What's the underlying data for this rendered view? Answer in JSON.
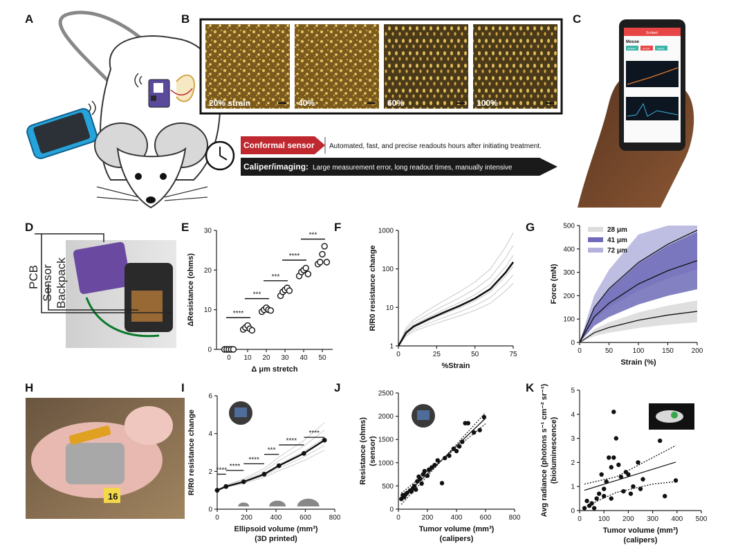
{
  "panels": [
    "A",
    "B",
    "C",
    "D",
    "E",
    "F",
    "G",
    "H",
    "I",
    "J",
    "K"
  ],
  "panel_b": {
    "strain_labels": [
      "20% strain",
      "40%",
      "60%",
      "100%"
    ]
  },
  "panel_a": {
    "sensor_label": "Conformal sensor",
    "sensor_text": "Automated, fast, and precise readouts hours after initiating treatment.",
    "caliper_label": "Caliper/imaging:",
    "caliper_text": "Large measurement error, long readout times, manually intensive"
  },
  "panel_c": {
    "app_title": "Scribed",
    "device_name": "Mouse",
    "buttons": [
      "START",
      "STOP",
      "SAVE"
    ]
  },
  "panel_d": {
    "labels": [
      "PCB",
      "Sensor",
      "Backpack"
    ]
  },
  "panel_h": {
    "tag": "16"
  },
  "colors": {
    "red_arrow": "#c0282f",
    "black_arrow": "#1a1a1a",
    "purple_dark": "#6e6bb8",
    "purple_light": "#b3b1dd",
    "grey_band": "#dcdcdc"
  },
  "chart_data": [
    {
      "panel": "E",
      "type": "scatter",
      "xlabel": "Δ μm stretch",
      "ylabel": "ΔResistance (ohms)",
      "x": [
        0,
        10,
        20,
        30,
        40,
        50
      ],
      "ylim": [
        0,
        30
      ],
      "yticks": [
        0,
        10,
        20,
        30
      ],
      "points": [
        {
          "x": 0,
          "y": [
            0,
            0,
            0,
            0,
            0
          ]
        },
        {
          "x": 10,
          "y": [
            5,
            5.5,
            6,
            5.2,
            4.8
          ]
        },
        {
          "x": 20,
          "y": [
            9.5,
            10,
            10.5,
            10,
            9.8
          ]
        },
        {
          "x": 30,
          "y": [
            13.5,
            14.5,
            15,
            15.5,
            14.8
          ]
        },
        {
          "x": 40,
          "y": [
            18.5,
            19.5,
            20,
            20.5,
            19
          ]
        },
        {
          "x": 50,
          "y": [
            21.5,
            22,
            24,
            26,
            22
          ]
        }
      ],
      "significance": [
        "****",
        "***",
        "***",
        "****",
        "***"
      ]
    },
    {
      "panel": "F",
      "type": "line",
      "xlabel": "%Strain",
      "ylabel": "R/R0 resistance change",
      "scale": "log",
      "xlim": [
        0,
        75
      ],
      "xticks": [
        0,
        25,
        50,
        75
      ],
      "yticks": [
        1,
        10,
        100,
        1000
      ],
      "mean": {
        "x": [
          0,
          5,
          10,
          20,
          30,
          40,
          50,
          60,
          70,
          75
        ],
        "y": [
          1,
          2.2,
          3.2,
          5,
          7.5,
          11,
          17,
          30,
          80,
          150
        ]
      }
    },
    {
      "panel": "G",
      "type": "area",
      "xlabel": "Strain (%)",
      "ylabel": "Force (mN)",
      "xlim": [
        0,
        200
      ],
      "ylim": [
        0,
        500
      ],
      "xticks": [
        0,
        50,
        100,
        150,
        200
      ],
      "yticks": [
        0,
        100,
        200,
        300,
        400,
        500
      ],
      "series": [
        {
          "name": "28 μm",
          "x": [
            0,
            25,
            50,
            100,
            150,
            200
          ],
          "y": [
            0,
            42,
            64,
            95,
            117,
            133
          ]
        },
        {
          "name": "41 μm",
          "x": [
            0,
            25,
            50,
            100,
            150,
            200
          ],
          "y": [
            0,
            110,
            168,
            250,
            307,
            350
          ]
        },
        {
          "name": "72 μm",
          "x": [
            0,
            25,
            50,
            100,
            150,
            200
          ],
          "y": [
            0,
            150,
            230,
            342,
            420,
            480
          ]
        }
      ]
    },
    {
      "panel": "I",
      "type": "line",
      "xlabel": "Ellipsoid volume (mm³)",
      "xlabel2": "(3D printed)",
      "ylabel": "R/R0 resistance change",
      "xlim": [
        0,
        800
      ],
      "ylim": [
        0,
        6
      ],
      "xticks": [
        0,
        200,
        400,
        600,
        800
      ],
      "yticks": [
        0,
        2,
        4,
        6
      ],
      "mean": {
        "x": [
          0,
          60,
          180,
          320,
          420,
          590,
          730
        ],
        "y": [
          1,
          1.2,
          1.45,
          1.85,
          2.3,
          2.95,
          3.65
        ]
      },
      "significance": [
        "****",
        "****",
        "****",
        "***",
        "****",
        "****"
      ]
    },
    {
      "panel": "J",
      "type": "scatter",
      "xlabel": "Tumor volume (mm³)",
      "xlabel2": "(calipers)",
      "ylabel": "Resistance (ohms)",
      "ylabel2": "(sensor)",
      "xlim": [
        0,
        800
      ],
      "ylim": [
        0,
        2500
      ],
      "xticks": [
        0,
        200,
        400,
        600,
        800
      ],
      "yticks": [
        0,
        500,
        1000,
        1500,
        2000,
        2500
      ],
      "x": [
        20,
        30,
        40,
        50,
        60,
        80,
        90,
        100,
        110,
        120,
        130,
        140,
        150,
        160,
        170,
        180,
        200,
        210,
        230,
        250,
        270,
        300,
        320,
        350,
        380,
        400,
        420,
        440,
        460,
        480,
        520,
        560,
        590
      ],
      "y": [
        220,
        300,
        260,
        320,
        350,
        400,
        380,
        450,
        500,
        420,
        600,
        700,
        650,
        550,
        750,
        820,
        720,
        850,
        900,
        950,
        1050,
        560,
        1100,
        1150,
        1300,
        1250,
        1350,
        1450,
        1850,
        1850,
        1650,
        1700,
        1980
      ]
    },
    {
      "panel": "K",
      "type": "scatter",
      "xlabel": "Tumor volume (mm³)",
      "xlabel2": "(calipers)",
      "ylabel": "Avg radiance (photons s⁻¹ cm⁻² sr⁻¹)",
      "ylabel2": "(bioluminescence)",
      "xlim": [
        0,
        500
      ],
      "ylim": [
        0,
        5
      ],
      "xticks": [
        0,
        100,
        200,
        300,
        400,
        500
      ],
      "yticks": [
        0,
        1,
        2,
        3,
        4,
        5
      ],
      "x": [
        20,
        30,
        40,
        50,
        60,
        70,
        80,
        90,
        100,
        110,
        120,
        130,
        140,
        150,
        160,
        170,
        180,
        190,
        200,
        210,
        220,
        240,
        250,
        260,
        330,
        350,
        395,
        140,
        130,
        100
      ],
      "y": [
        0.1,
        0.4,
        0.2,
        0.3,
        0.1,
        0.5,
        0.7,
        1.5,
        0.9,
        1.2,
        2.2,
        1.8,
        4.1,
        3.0,
        1.9,
        1.4,
        0.8,
        1.6,
        1.5,
        0.7,
        1.0,
        2.0,
        0.9,
        1.3,
        2.9,
        0.6,
        1.25,
        2.2,
        0.5,
        0.6
      ]
    }
  ]
}
